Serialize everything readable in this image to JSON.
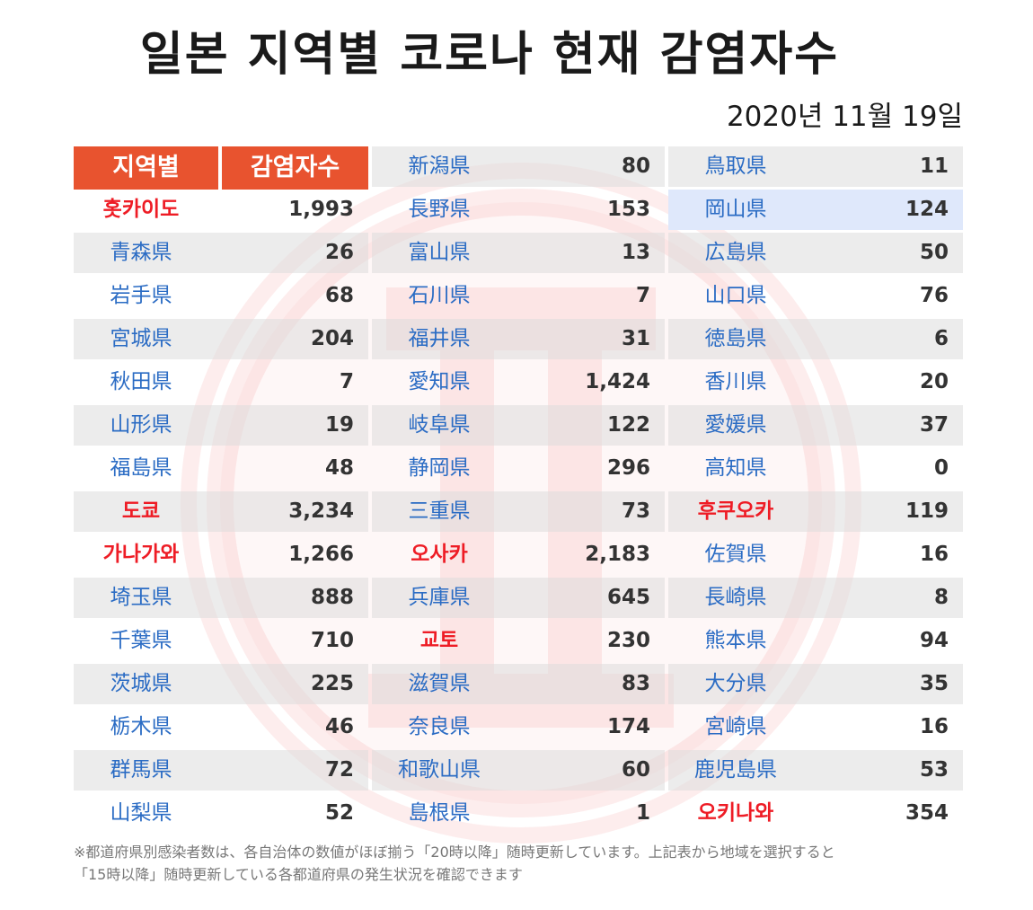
{
  "title": "일본 지역별 코로나 현재 감염자수",
  "date": "2020년 11월 19일",
  "header": {
    "region": "지역별",
    "infected": "감염자수"
  },
  "colors": {
    "header_bg": "#e8532f",
    "name_blue": "#2b6cc4",
    "name_red": "#ee1c25",
    "highlight": "#dfe8fb"
  },
  "columns": [
    {
      "rows": [
        {
          "name": "홋카이도",
          "value": "1,993",
          "red": true
        },
        {
          "name": "青森県",
          "value": "26"
        },
        {
          "name": "岩手県",
          "value": "68"
        },
        {
          "name": "宮城県",
          "value": "204"
        },
        {
          "name": "秋田県",
          "value": "7"
        },
        {
          "name": "山形県",
          "value": "19"
        },
        {
          "name": "福島県",
          "value": "48"
        },
        {
          "name": "도쿄",
          "value": "3,234",
          "red": true
        },
        {
          "name": "가나가와",
          "value": "1,266",
          "red": true
        },
        {
          "name": "埼玉県",
          "value": "888"
        },
        {
          "name": "千葉県",
          "value": "710"
        },
        {
          "name": "茨城県",
          "value": "225"
        },
        {
          "name": "栃木県",
          "value": "46"
        },
        {
          "name": "群馬県",
          "value": "72"
        },
        {
          "name": "山梨県",
          "value": "52"
        }
      ]
    },
    {
      "rows": [
        {
          "name": "新潟県",
          "value": "80"
        },
        {
          "name": "長野県",
          "value": "153"
        },
        {
          "name": "富山県",
          "value": "13"
        },
        {
          "name": "石川県",
          "value": "7"
        },
        {
          "name": "福井県",
          "value": "31"
        },
        {
          "name": "愛知県",
          "value": "1,424"
        },
        {
          "name": "岐阜県",
          "value": "122"
        },
        {
          "name": "静岡県",
          "value": "296"
        },
        {
          "name": "三重県",
          "value": "73"
        },
        {
          "name": "오사카",
          "value": "2,183",
          "red": true
        },
        {
          "name": "兵庫県",
          "value": "645"
        },
        {
          "name": "교토",
          "value": "230",
          "red": true
        },
        {
          "name": "滋賀県",
          "value": "83"
        },
        {
          "name": "奈良県",
          "value": "174"
        },
        {
          "name": "和歌山県",
          "value": "60"
        },
        {
          "name": "島根県",
          "value": "1"
        }
      ]
    },
    {
      "rows": [
        {
          "name": "鳥取県",
          "value": "11"
        },
        {
          "name": "岡山県",
          "value": "124",
          "highlight": true
        },
        {
          "name": "広島県",
          "value": "50"
        },
        {
          "name": "山口県",
          "value": "76"
        },
        {
          "name": "徳島県",
          "value": "6"
        },
        {
          "name": "香川県",
          "value": "20"
        },
        {
          "name": "愛媛県",
          "value": "37"
        },
        {
          "name": "高知県",
          "value": "0"
        },
        {
          "name": "후쿠오카",
          "value": "119",
          "red": true
        },
        {
          "name": "佐賀県",
          "value": "16"
        },
        {
          "name": "長崎県",
          "value": "8"
        },
        {
          "name": "熊本県",
          "value": "94"
        },
        {
          "name": "大分県",
          "value": "35"
        },
        {
          "name": "宮崎県",
          "value": "16"
        },
        {
          "name": "鹿児島県",
          "value": "53"
        },
        {
          "name": "오키나와",
          "value": "354",
          "red": true
        }
      ]
    }
  ],
  "footnote": {
    "line1": "※都道府県別感染者数は、各自治体の数値がほぼ揃う「20時以降」随時更新しています。上記表から地域を選択すると",
    "line2": "「15時以降」随時更新している各都道府県の発生状況を確認できます"
  }
}
